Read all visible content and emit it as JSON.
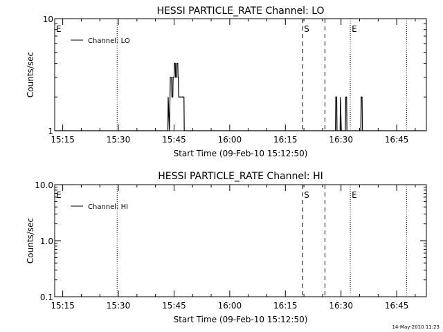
{
  "chart_data": [
    {
      "type": "line",
      "title": "HESSI PARTICLE_RATE Channel: LO",
      "xlabel": "Start Time (09-Feb-10 15:12:50)",
      "ylabel": "Counts/sec",
      "x_unit": "minutes",
      "xlim": [
        "15:12:50",
        "16:53:00"
      ],
      "x_ticks": [
        "15:15",
        "15:30",
        "15:45",
        "16:00",
        "16:15",
        "16:30",
        "16:45"
      ],
      "yscale": "log",
      "ylim": [
        1,
        10
      ],
      "y_ticks": [
        "1",
        "10"
      ],
      "legend": {
        "position": "top-left",
        "entries": [
          "Channel: LO"
        ]
      },
      "markers": [
        {
          "time": "15:12:50",
          "style": "dotted",
          "label": "E"
        },
        {
          "time": "15:29:40",
          "style": "dotted",
          "label": ""
        },
        {
          "time": "16:19:40",
          "style": "dashed",
          "label": "S"
        },
        {
          "time": "16:25:40",
          "style": "dashed",
          "label": ""
        },
        {
          "time": "16:32:30",
          "style": "dotted",
          "label": "E"
        },
        {
          "time": "16:47:40",
          "style": "dotted",
          "label": ""
        }
      ],
      "series": [
        {
          "name": "Channel: LO",
          "points": [
            [
              "15:12:50",
              1
            ],
            [
              "15:43:20",
              1
            ],
            [
              "15:43:25",
              2
            ],
            [
              "15:43:45",
              1
            ],
            [
              "15:44:00",
              3
            ],
            [
              "15:44:20",
              3
            ],
            [
              "15:44:25",
              2
            ],
            [
              "15:44:40",
              2
            ],
            [
              "15:44:45",
              3
            ],
            [
              "15:45:00",
              3
            ],
            [
              "15:45:05",
              4
            ],
            [
              "15:45:20",
              4
            ],
            [
              "15:45:25",
              3
            ],
            [
              "15:45:40",
              3
            ],
            [
              "15:45:45",
              4
            ],
            [
              "15:46:00",
              4
            ],
            [
              "15:46:05",
              3
            ],
            [
              "15:46:10",
              3
            ],
            [
              "15:46:15",
              2
            ],
            [
              "15:47:40",
              2
            ],
            [
              "15:47:45",
              1
            ],
            [
              "16:28:30",
              1
            ],
            [
              "16:28:35",
              2
            ],
            [
              "16:28:50",
              2
            ],
            [
              "16:28:55",
              1
            ],
            [
              "16:29:45",
              1
            ],
            [
              "16:29:50",
              2
            ],
            [
              "16:30:05",
              1
            ],
            [
              "16:31:10",
              1
            ],
            [
              "16:31:15",
              2
            ],
            [
              "16:31:30",
              2
            ],
            [
              "16:31:35",
              1
            ],
            [
              "16:35:20",
              1
            ],
            [
              "16:35:25",
              2
            ],
            [
              "16:35:40",
              2
            ],
            [
              "16:35:45",
              1
            ],
            [
              "16:53:00",
              1
            ]
          ]
        }
      ]
    },
    {
      "type": "line",
      "title": "HESSI PARTICLE_RATE Channel: HI",
      "xlabel": "Start Time (09-Feb-10 15:12:50)",
      "ylabel": "Counts/sec",
      "xlim": [
        "15:12:50",
        "16:53:00"
      ],
      "x_ticks": [
        "15:15",
        "15:30",
        "15:45",
        "16:00",
        "16:15",
        "16:30",
        "16:45"
      ],
      "yscale": "log",
      "ylim": [
        0.1,
        10
      ],
      "y_ticks": [
        "0.1",
        "1.0",
        "10.0"
      ],
      "legend": {
        "position": "top-left",
        "entries": [
          "Channel: HI"
        ]
      },
      "markers": [
        {
          "time": "15:12:50",
          "style": "dotted",
          "label": "E"
        },
        {
          "time": "15:29:40",
          "style": "dotted",
          "label": ""
        },
        {
          "time": "16:19:40",
          "style": "dashed",
          "label": "S"
        },
        {
          "time": "16:25:40",
          "style": "dashed",
          "label": ""
        },
        {
          "time": "16:32:30",
          "style": "dotted",
          "label": "E"
        },
        {
          "time": "16:47:40",
          "style": "dotted",
          "label": ""
        }
      ],
      "series": [
        {
          "name": "Channel: HI",
          "points": []
        }
      ]
    }
  ],
  "footer": {
    "timestamp": "14-May-2010 11:23"
  }
}
